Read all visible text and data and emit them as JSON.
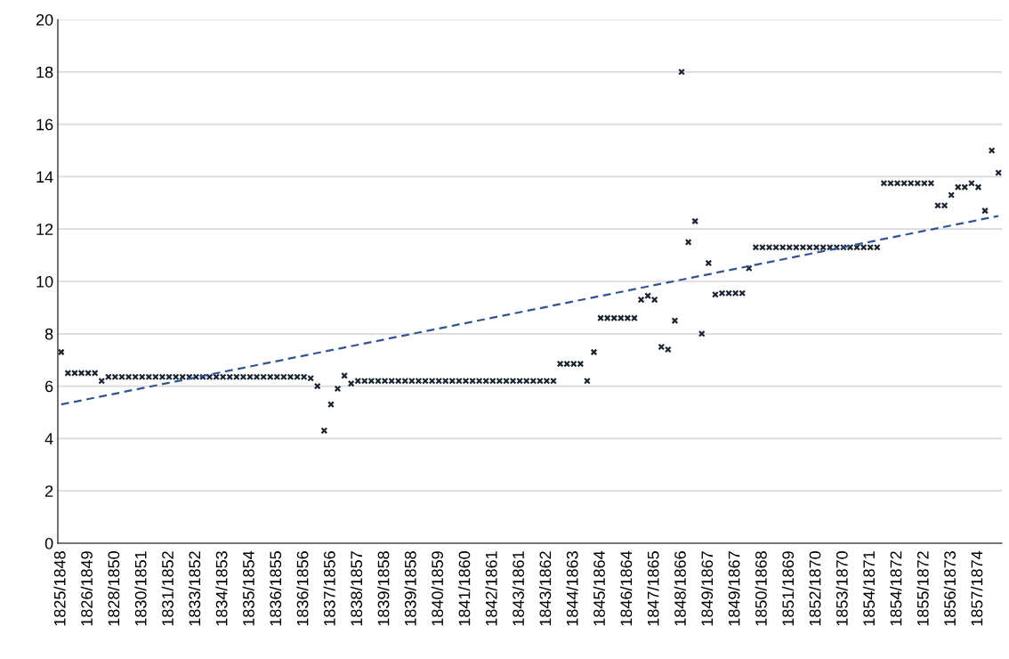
{
  "chart_data": {
    "type": "scatter",
    "grid": "y",
    "ylim": [
      0,
      20
    ],
    "yticks": [
      0,
      2,
      4,
      6,
      8,
      10,
      12,
      14,
      16,
      18,
      20
    ],
    "categories": [
      "1825/1848",
      null,
      null,
      null,
      "1826/1849",
      null,
      null,
      null,
      "1828/1850",
      null,
      null,
      null,
      "1830/1851",
      null,
      null,
      null,
      "1831/1852",
      null,
      null,
      null,
      "1833/1852",
      null,
      null,
      null,
      "1834/1853",
      null,
      null,
      null,
      "1835/1854",
      null,
      null,
      null,
      "1836/1855",
      null,
      null,
      null,
      "1836/1856",
      null,
      null,
      null,
      "1837/1856",
      null,
      null,
      null,
      "1838/1857",
      null,
      null,
      null,
      "1839/1858",
      null,
      null,
      null,
      "1839/1858",
      null,
      null,
      null,
      "1840/1859",
      null,
      null,
      null,
      "1841/1860",
      null,
      null,
      null,
      "1842/1861",
      null,
      null,
      null,
      "1843/1861",
      null,
      null,
      null,
      "1843/1862",
      null,
      null,
      null,
      "1844/1863",
      null,
      null,
      null,
      "1845/1864",
      null,
      null,
      null,
      "1846/1864",
      null,
      null,
      null,
      "1847/1865",
      null,
      null,
      null,
      "1848/1866",
      null,
      null,
      null,
      "1849/1867",
      null,
      null,
      null,
      "1849/1867",
      null,
      null,
      null,
      "1850/1868",
      null,
      null,
      null,
      "1851/1869",
      null,
      null,
      null,
      "1852/1870",
      null,
      null,
      null,
      "1853/1870",
      null,
      null,
      null,
      "1854/1871",
      null,
      null,
      null,
      "1854/1872",
      null,
      null,
      null,
      "1855/1872",
      null,
      null,
      null,
      "1856/1873",
      null,
      null,
      null,
      "1857/1874",
      null,
      null,
      null
    ],
    "series": [
      {
        "color": "#1b2433",
        "marker": "cross",
        "values": [
          7.3,
          6.5,
          6.5,
          6.5,
          6.5,
          6.5,
          6.2,
          6.35,
          6.35,
          6.35,
          6.35,
          6.35,
          6.35,
          6.35,
          6.35,
          6.35,
          6.35,
          6.35,
          6.35,
          6.35,
          6.35,
          6.35,
          6.35,
          6.35,
          6.35,
          6.35,
          6.35,
          6.35,
          6.35,
          6.35,
          6.35,
          6.35,
          6.35,
          6.35,
          6.35,
          6.35,
          6.35,
          6.3,
          6.0,
          4.3,
          5.3,
          5.9,
          6.4,
          6.1,
          6.2,
          6.2,
          6.2,
          6.2,
          6.2,
          6.2,
          6.2,
          6.2,
          6.2,
          6.2,
          6.2,
          6.2,
          6.2,
          6.2,
          6.2,
          6.2,
          6.2,
          6.2,
          6.2,
          6.2,
          6.2,
          6.2,
          6.2,
          6.2,
          6.2,
          6.2,
          6.2,
          6.2,
          6.2,
          6.2,
          6.85,
          6.85,
          6.85,
          6.85,
          6.2,
          7.3,
          8.6,
          8.6,
          8.6,
          8.6,
          8.6,
          8.6,
          9.3,
          9.45,
          9.3,
          7.5,
          7.4,
          8.5,
          18.0,
          11.5,
          12.3,
          8.0,
          10.7,
          9.5,
          9.55,
          9.55,
          9.55,
          9.55,
          10.5,
          11.3,
          11.3,
          11.3,
          11.3,
          11.3,
          11.3,
          11.3,
          11.3,
          11.3,
          11.3,
          11.3,
          11.3,
          11.3,
          11.3,
          11.3,
          11.3,
          11.3,
          11.3,
          11.3,
          13.75,
          13.75,
          13.75,
          13.75,
          13.75,
          13.75,
          13.75,
          13.75,
          12.9,
          12.9,
          13.3,
          13.6,
          13.6,
          13.75,
          13.6,
          12.7,
          15.0,
          14.15
        ]
      },
      {
        "type": "line",
        "color": "#2f5597",
        "line_style": "dashed",
        "values": [
          5.3,
          null,
          null,
          null,
          null,
          null,
          null,
          null,
          null,
          null,
          null,
          null,
          null,
          null,
          null,
          null,
          null,
          null,
          null,
          null,
          null,
          null,
          null,
          null,
          null,
          null,
          null,
          null,
          null,
          null,
          null,
          null,
          null,
          null,
          null,
          null,
          null,
          null,
          null,
          null,
          null,
          null,
          null,
          null,
          null,
          null,
          null,
          null,
          null,
          null,
          null,
          null,
          null,
          null,
          null,
          null,
          null,
          null,
          null,
          null,
          null,
          null,
          null,
          null,
          null,
          null,
          null,
          null,
          null,
          null,
          null,
          null,
          null,
          null,
          null,
          null,
          null,
          null,
          null,
          null,
          null,
          null,
          null,
          null,
          null,
          null,
          null,
          null,
          null,
          null,
          null,
          null,
          null,
          null,
          null,
          null,
          null,
          null,
          null,
          null,
          null,
          null,
          null,
          null,
          null,
          null,
          null,
          null,
          null,
          null,
          null,
          null,
          null,
          null,
          null,
          null,
          null,
          null,
          null,
          null,
          null,
          null,
          null,
          null,
          null,
          null,
          null,
          null,
          null,
          null,
          null,
          null,
          null,
          null,
          null,
          null,
          null,
          null,
          null,
          12.5
        ]
      }
    ]
  }
}
